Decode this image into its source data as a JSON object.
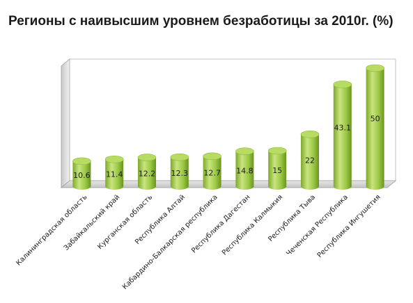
{
  "chart_data": {
    "type": "bar",
    "title": "Регионы с наивысшим уровнем безработицы за 2010г. (%)",
    "categories": [
      "Калининградская область",
      "Забайкальский край",
      "Курганская область",
      "Республика Алтай",
      "Кабардино-Балкарская республика",
      "Республика Дагестан",
      "Республика Калмыкия",
      "Республика Тыва",
      "Чеченская Республика",
      "Республика Ингушетия"
    ],
    "values": [
      10.6,
      11.4,
      12.2,
      12.3,
      12.7,
      14.8,
      15,
      22,
      43.1,
      50
    ],
    "data_labels": [
      "10.6",
      "11.4",
      "12.2",
      "12.3",
      "12.7",
      "14.8",
      "15",
      "22",
      "43.1",
      "50"
    ],
    "xlabel": "",
    "ylabel": "",
    "ylim": [
      0,
      50
    ],
    "grid": false,
    "legend": "none",
    "style": "3d-cylinder",
    "colors": {
      "bar_light": "#c6e27a",
      "bar_mid": "#9bc845",
      "bar_dark": "#6f9a24",
      "bar_top": "#b8dc63",
      "wall": "#d9d9d9"
    }
  }
}
